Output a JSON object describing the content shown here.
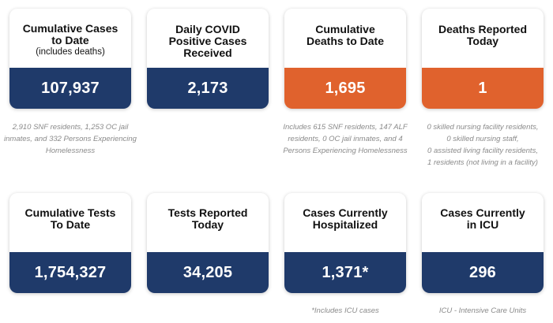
{
  "colors": {
    "navy": "#1f3a6a",
    "orange": "#e0622d",
    "note_gray": "#8a8a8a"
  },
  "cards": [
    {
      "title_line1": "Cumulative Cases",
      "title_line2": "to Date",
      "title_sub": "(includes deaths)",
      "value": "107,937",
      "color": "navy",
      "note": "2,910 SNF residents, 1,253 OC jail inmates, and 332 Persons Experiencing Homelessness"
    },
    {
      "title_line1": "Daily COVID",
      "title_line2": "Positive Cases",
      "title_line3": "Received",
      "value": "2,173",
      "color": "navy"
    },
    {
      "title_line1": "Cumulative",
      "title_line2": "Deaths to Date",
      "value": "1,695",
      "color": "orange",
      "note": "Includes 615 SNF residents, 147 ALF residents, 0 OC jail inmates, and 4 Persons Experiencing Homelessness"
    },
    {
      "title_line1": "Deaths Reported",
      "title_line2": "Today",
      "value": "1",
      "color": "orange",
      "note_lines": [
        "0 skilled nursing facility residents,",
        "0 skilled nursing staff,",
        "0 assisted living facility residents,",
        "1 residents (not living in a facility)"
      ]
    },
    {
      "title_line1": "Cumulative Tests",
      "title_line2": "To Date",
      "value": "1,754,327",
      "color": "navy"
    },
    {
      "title_line1": "Tests Reported",
      "title_line2": "Today",
      "value": "34,205",
      "color": "navy"
    },
    {
      "title_line1": "Cases Currently",
      "title_line2": "Hospitalized",
      "value": "1,371*",
      "color": "navy",
      "note": "*Includes ICU cases"
    },
    {
      "title_line1": "Cases Currently",
      "title_line2": "in ICU",
      "value": "296",
      "color": "navy",
      "note": "ICU - Intensive Care Units"
    }
  ]
}
